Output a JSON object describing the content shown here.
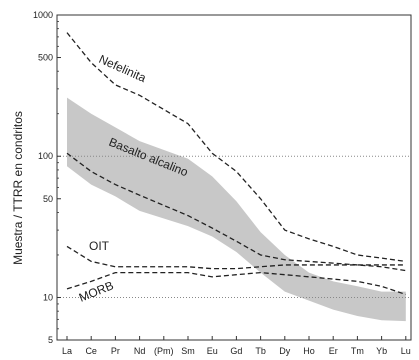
{
  "chart_data": {
    "type": "line",
    "title": "",
    "xlabel": "",
    "ylabel": "Muestra / TTRR en condritos",
    "y_scale": "log",
    "ylim": [
      5,
      1000
    ],
    "y_ticks": [
      {
        "value": 5,
        "label": "5"
      },
      {
        "value": 10,
        "label": "10"
      },
      {
        "value": 50,
        "label": "50"
      },
      {
        "value": 100,
        "label": "100"
      },
      {
        "value": 500,
        "label": "500"
      },
      {
        "value": 1000,
        "label": "1000"
      }
    ],
    "categories": [
      "La",
      "Ce",
      "Pr",
      "Nd",
      "(Pm)",
      "Sm",
      "Eu",
      "Gd",
      "Tb",
      "Dy",
      "Ho",
      "Er",
      "Tm",
      "Yb",
      "Lu"
    ],
    "gridlines_y": [
      10,
      100
    ],
    "band": {
      "name": "",
      "upper": [
        260,
        200,
        160,
        128,
        null,
        96,
        72,
        48,
        29,
        20,
        15,
        13,
        12,
        11,
        11
      ],
      "lower": [
        85,
        63,
        52,
        41,
        null,
        32,
        27,
        21,
        15,
        11,
        9.5,
        8.2,
        7.4,
        6.9,
        6.8
      ],
      "color": "#c8c8c8"
    },
    "series": [
      {
        "name": "Nefelinita",
        "values": [
          750,
          460,
          320,
          270,
          null,
          170,
          105,
          78,
          50,
          30,
          26,
          23,
          20,
          19,
          18
        ]
      },
      {
        "name": "Basalto alcalino",
        "values": [
          105,
          78,
          63,
          53,
          null,
          38,
          31,
          25,
          20,
          18.5,
          18,
          17.5,
          17,
          16.5,
          15.5
        ]
      },
      {
        "name": "OIT",
        "values": [
          23,
          18,
          16.5,
          16.5,
          null,
          16.5,
          16,
          16,
          16.5,
          17,
          17,
          17,
          17,
          17,
          17
        ]
      },
      {
        "name": "MORB",
        "values": [
          11.5,
          13,
          15,
          15,
          null,
          15,
          14,
          14.5,
          15,
          14.5,
          14,
          13.5,
          13,
          12,
          10.5
        ]
      }
    ],
    "line_color": "#222222",
    "line_style": "dashed",
    "grid": "dotted-horizontal",
    "legend": "none"
  }
}
